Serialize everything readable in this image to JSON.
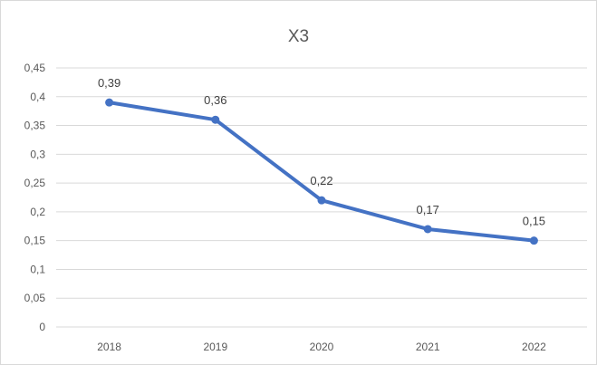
{
  "chart_data": {
    "type": "line",
    "title": "X3",
    "xlabel": "",
    "ylabel": "",
    "categories": [
      "2018",
      "2019",
      "2020",
      "2021",
      "2022"
    ],
    "series": [
      {
        "values": [
          0.39,
          0.36,
          0.22,
          0.17,
          0.15
        ]
      }
    ],
    "data_labels": [
      "0,39",
      "0,36",
      "0,22",
      "0,17",
      "0,15"
    ],
    "yticks": [
      0,
      0.05,
      0.1,
      0.15,
      0.2,
      0.25,
      0.3,
      0.35,
      0.4,
      0.45
    ],
    "ytick_labels": [
      "0",
      "0,05",
      "0,1",
      "0,15",
      "0,2",
      "0,25",
      "0,3",
      "0,35",
      "0,4",
      "0,45"
    ],
    "ylim": [
      0,
      0.45
    ],
    "grid": true,
    "legend": "none",
    "colors": {
      "line": "#4472c4",
      "grid": "#d9d9d9",
      "text": "#595959"
    }
  }
}
